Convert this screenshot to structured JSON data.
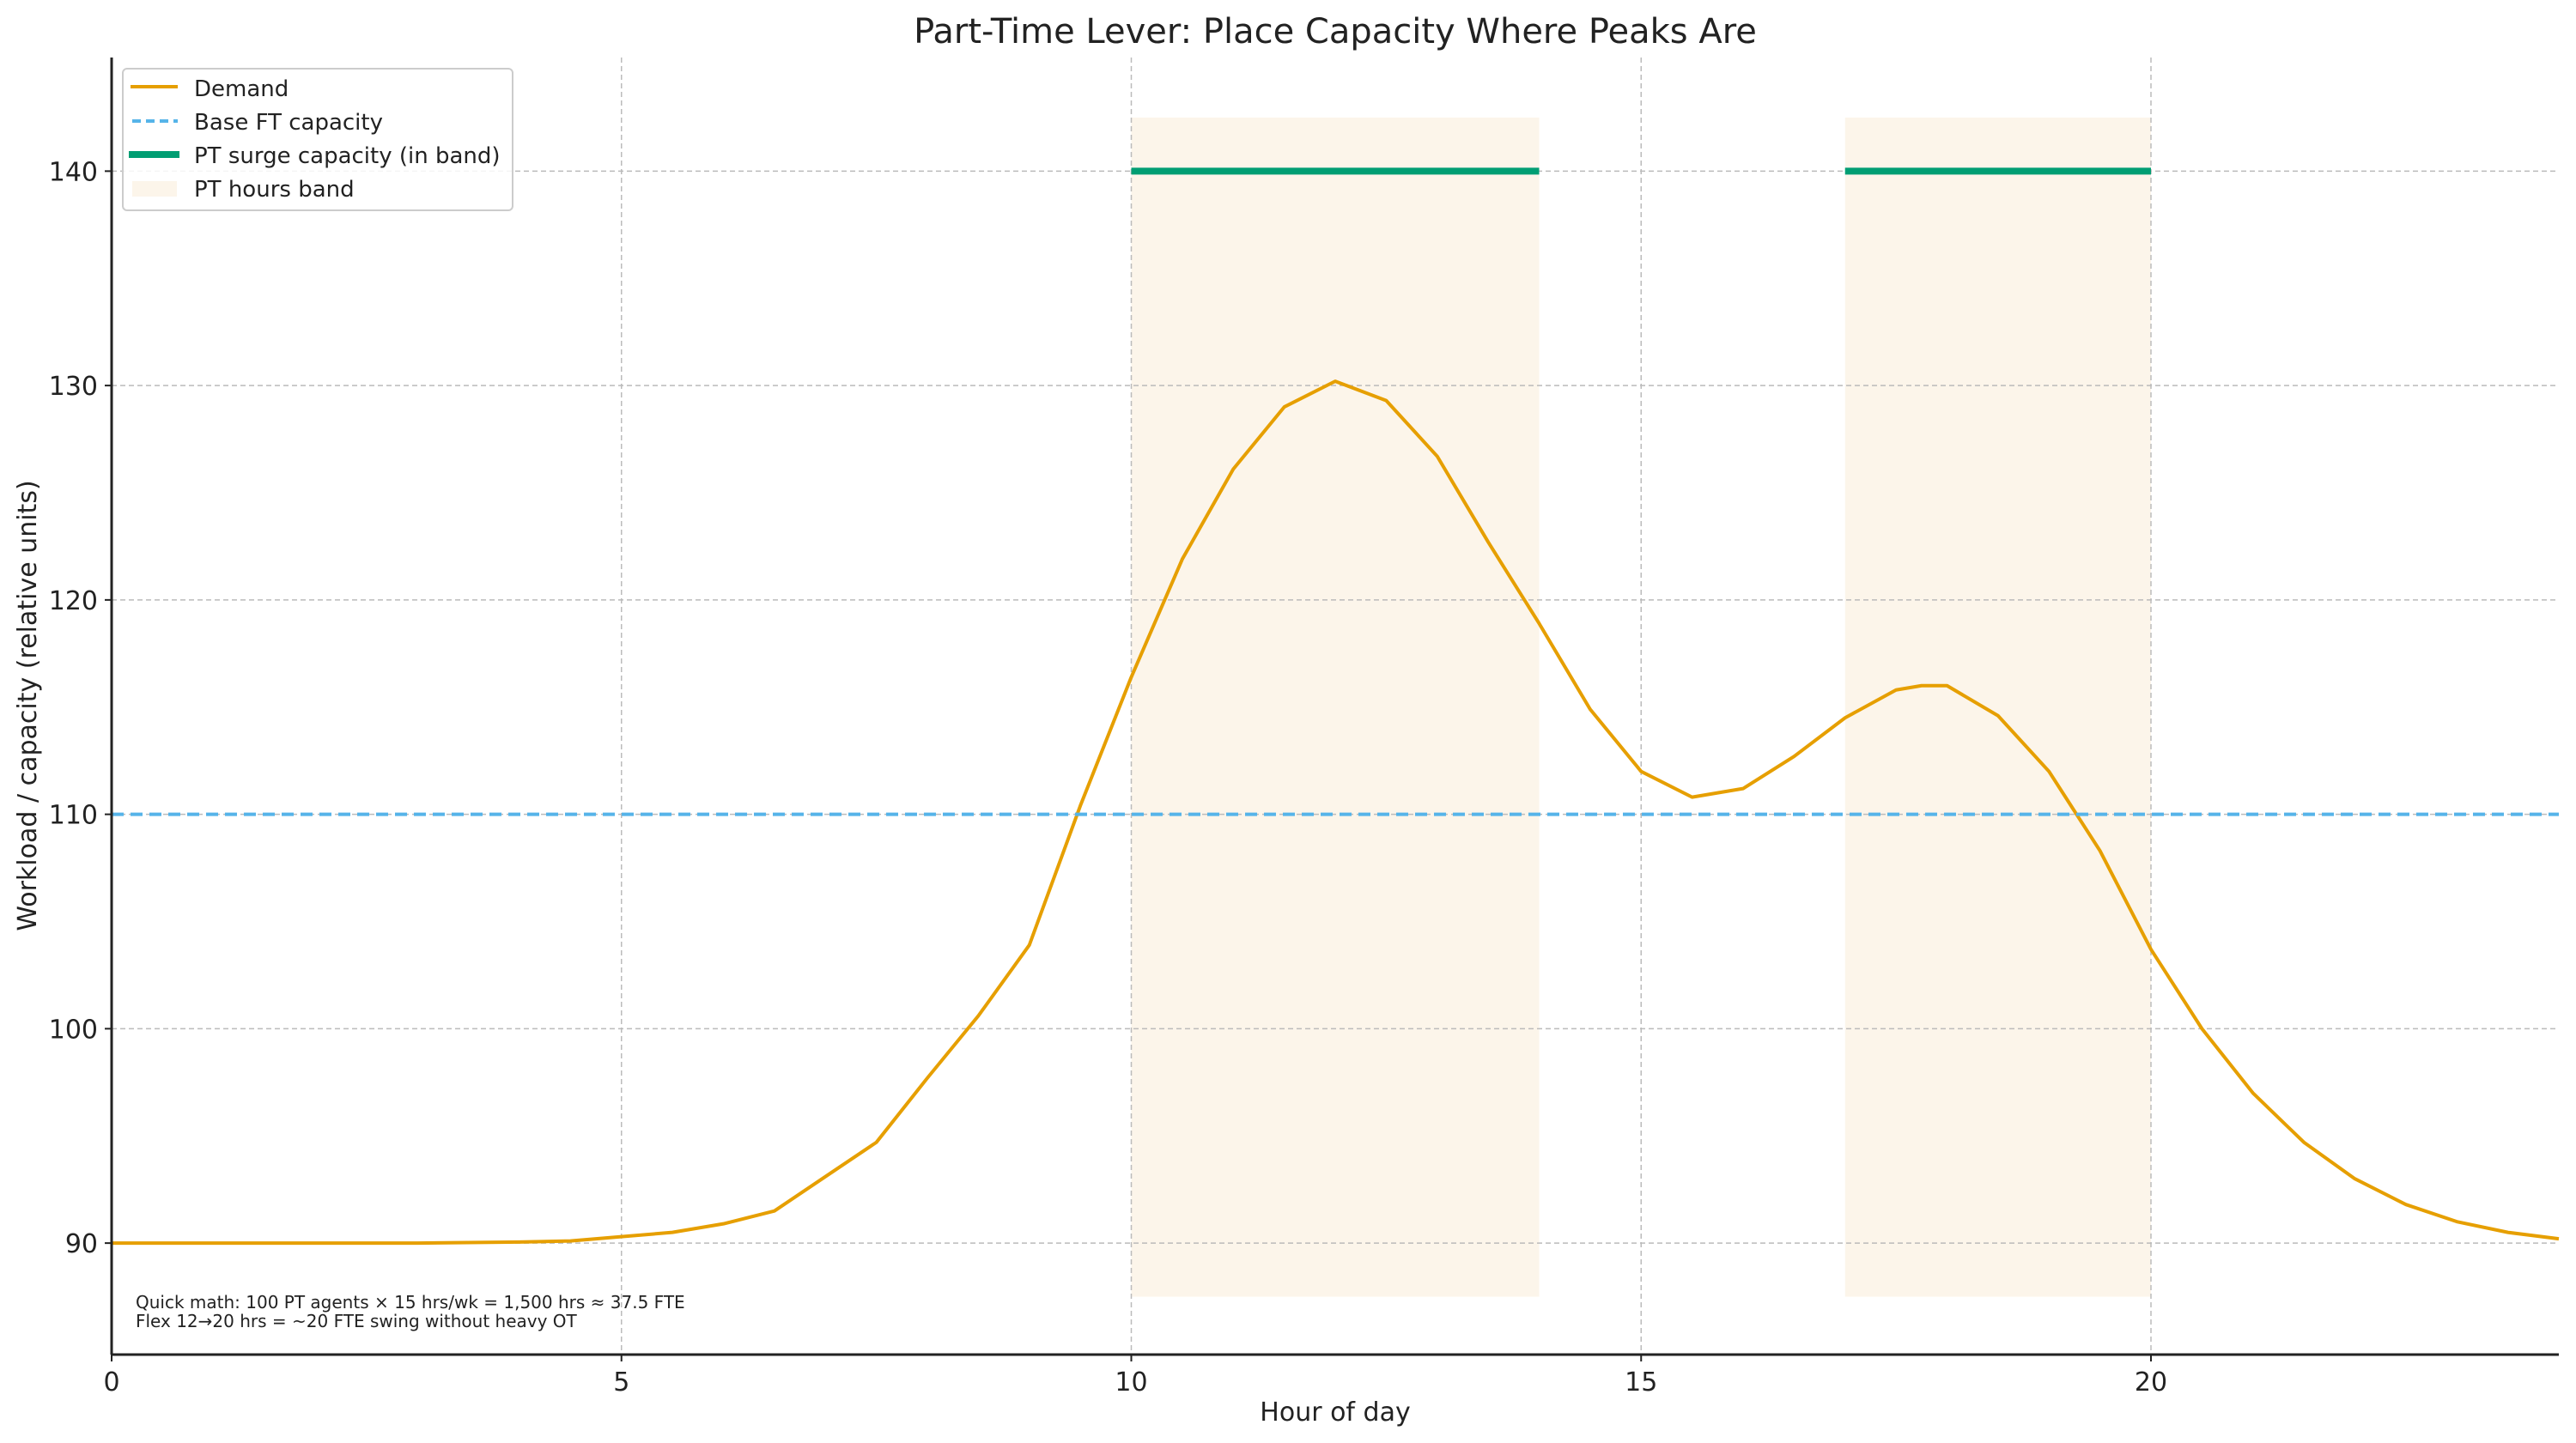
{
  "chart_data": {
    "type": "line",
    "title": "Part-Time Lever: Place Capacity Where Peaks Are",
    "xlabel": "Hour of day",
    "ylabel": "Workload / capacity (relative units)",
    "xlim": [
      0,
      24
    ],
    "ylim": [
      84.8,
      145.3
    ],
    "xticks": [
      0,
      5,
      10,
      15,
      20
    ],
    "yticks": [
      90,
      100,
      110,
      120,
      130,
      140
    ],
    "grid": true,
    "legend_position": "top-left",
    "colors": {
      "demand": "#E69F00",
      "base": "#56B4E9",
      "surge": "#009E73",
      "band": "#FCF5EA"
    },
    "series": [
      {
        "name": "Demand",
        "style": "solid",
        "x": [
          0,
          1,
          2,
          3,
          4,
          4.5,
          5,
          5.5,
          6,
          6.5,
          7,
          7.5,
          8,
          8.5,
          9,
          9.5,
          10,
          10.5,
          11,
          11.5,
          12,
          12.5,
          13,
          13.5,
          14,
          14.5,
          15,
          15.5,
          16,
          16.5,
          17,
          17.5,
          17.75,
          18,
          18.5,
          19,
          19.5,
          20,
          20.5,
          21,
          21.5,
          22,
          22.5,
          23,
          23.5,
          24
        ],
        "y": [
          90,
          90,
          90,
          90,
          90.05,
          90.1,
          90.3,
          90.5,
          90.9,
          91.5,
          93.1,
          94.7,
          97.7,
          100.6,
          103.9,
          110.4,
          116.4,
          121.9,
          126.1,
          129,
          130.2,
          129.3,
          126.7,
          122.7,
          118.9,
          114.9,
          112,
          110.8,
          111.2,
          112.7,
          114.5,
          115.8,
          116,
          116,
          114.6,
          112,
          108.3,
          103.7,
          100,
          97,
          94.7,
          93,
          91.8,
          91,
          90.5,
          90.2
        ]
      },
      {
        "name": "Base FT capacity",
        "style": "dashed",
        "x": [
          0,
          24
        ],
        "y": [
          110,
          110
        ]
      },
      {
        "name": "PT surge capacity (in band)",
        "style": "thick",
        "segments": [
          {
            "x": [
              10,
              14
            ],
            "y": 140
          },
          {
            "x": [
              17,
              20
            ],
            "y": 140
          }
        ]
      }
    ],
    "bands": {
      "name": "PT hours band",
      "ranges": [
        [
          10,
          14
        ],
        [
          17,
          20
        ]
      ],
      "y_range": [
        87.5,
        142.5
      ]
    },
    "annotations": [
      "Quick math: 100 PT agents × 15 hrs/wk = 1,500 hrs ≈ 37.5 FTE",
      "Flex 12→20 hrs = ~20 FTE swing without heavy OT"
    ]
  }
}
